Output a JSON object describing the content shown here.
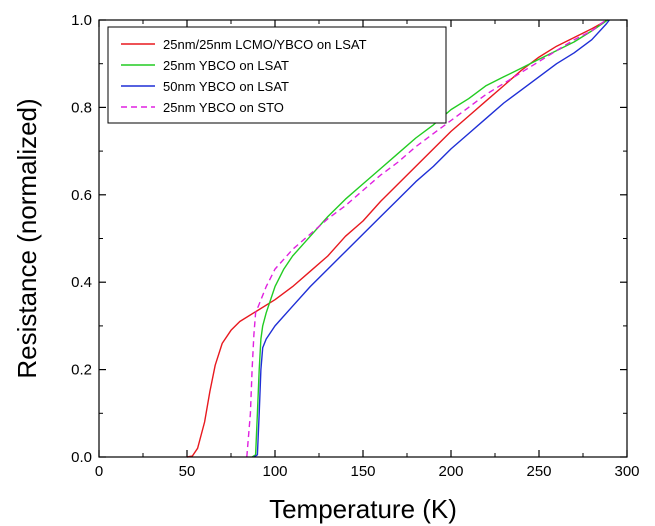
{
  "chart_data": {
    "type": "line",
    "xlabel": "Temperature (K)",
    "ylabel": "Resistance (normalized)",
    "xlim": [
      0,
      300
    ],
    "ylim": [
      0,
      1.0
    ],
    "x_ticks": [
      "0",
      "50",
      "100",
      "150",
      "200",
      "250",
      "300"
    ],
    "y_ticks": [
      "0.0",
      "0.2",
      "0.4",
      "0.6",
      "0.8",
      "1.0"
    ],
    "grid": false,
    "legend_position": "top-left",
    "series": [
      {
        "name": "25nm/25nm LCMO/YBCO on LSAT",
        "color": "#e8191f",
        "dash": "solid",
        "points": [
          [
            50,
            0
          ],
          [
            53,
            0.002
          ],
          [
            56,
            0.02
          ],
          [
            60,
            0.08
          ],
          [
            63,
            0.15
          ],
          [
            66,
            0.21
          ],
          [
            70,
            0.26
          ],
          [
            75,
            0.29
          ],
          [
            80,
            0.31
          ],
          [
            90,
            0.335
          ],
          [
            100,
            0.36
          ],
          [
            110,
            0.39
          ],
          [
            120,
            0.425
          ],
          [
            130,
            0.46
          ],
          [
            140,
            0.505
          ],
          [
            150,
            0.54
          ],
          [
            160,
            0.585
          ],
          [
            170,
            0.625
          ],
          [
            180,
            0.665
          ],
          [
            190,
            0.705
          ],
          [
            200,
            0.745
          ],
          [
            210,
            0.78
          ],
          [
            220,
            0.815
          ],
          [
            230,
            0.85
          ],
          [
            240,
            0.885
          ],
          [
            250,
            0.915
          ],
          [
            260,
            0.94
          ],
          [
            270,
            0.96
          ],
          [
            280,
            0.98
          ],
          [
            289,
            1.0
          ]
        ]
      },
      {
        "name": "25nm YBCO on LSAT",
        "color": "#22cc22",
        "dash": "solid",
        "points": [
          [
            87,
            0
          ],
          [
            89,
            0.005
          ],
          [
            90,
            0.1
          ],
          [
            91,
            0.2
          ],
          [
            92,
            0.27
          ],
          [
            93,
            0.3
          ],
          [
            95,
            0.33
          ],
          [
            100,
            0.39
          ],
          [
            105,
            0.43
          ],
          [
            110,
            0.46
          ],
          [
            120,
            0.505
          ],
          [
            130,
            0.55
          ],
          [
            140,
            0.59
          ],
          [
            150,
            0.625
          ],
          [
            160,
            0.66
          ],
          [
            170,
            0.695
          ],
          [
            180,
            0.73
          ],
          [
            190,
            0.76
          ],
          [
            200,
            0.795
          ],
          [
            210,
            0.82
          ],
          [
            220,
            0.85
          ],
          [
            230,
            0.87
          ],
          [
            240,
            0.89
          ],
          [
            250,
            0.91
          ],
          [
            260,
            0.93
          ],
          [
            270,
            0.95
          ],
          [
            280,
            0.975
          ],
          [
            289,
            1.0
          ]
        ]
      },
      {
        "name": "50nm YBCO on LSAT",
        "color": "#1f2fd6",
        "dash": "solid",
        "points": [
          [
            88,
            0
          ],
          [
            90,
            0.005
          ],
          [
            91,
            0.1
          ],
          [
            92,
            0.2
          ],
          [
            93,
            0.25
          ],
          [
            95,
            0.27
          ],
          [
            100,
            0.3
          ],
          [
            110,
            0.345
          ],
          [
            120,
            0.39
          ],
          [
            130,
            0.43
          ],
          [
            140,
            0.47
          ],
          [
            150,
            0.51
          ],
          [
            160,
            0.55
          ],
          [
            170,
            0.59
          ],
          [
            180,
            0.63
          ],
          [
            190,
            0.665
          ],
          [
            200,
            0.705
          ],
          [
            210,
            0.74
          ],
          [
            220,
            0.775
          ],
          [
            230,
            0.81
          ],
          [
            240,
            0.84
          ],
          [
            250,
            0.87
          ],
          [
            260,
            0.9
          ],
          [
            270,
            0.925
          ],
          [
            280,
            0.955
          ],
          [
            288,
            0.99
          ],
          [
            290,
            1.0
          ]
        ]
      },
      {
        "name": "25nm YBCO on STO",
        "color": "#e020e0",
        "dash": "dashed",
        "points": [
          [
            84,
            0
          ],
          [
            86,
            0.1
          ],
          [
            87,
            0.2
          ],
          [
            88,
            0.28
          ],
          [
            89,
            0.33
          ],
          [
            91,
            0.35
          ],
          [
            95,
            0.39
          ],
          [
            100,
            0.43
          ],
          [
            110,
            0.475
          ],
          [
            120,
            0.51
          ],
          [
            130,
            0.545
          ],
          [
            140,
            0.575
          ],
          [
            150,
            0.61
          ],
          [
            160,
            0.645
          ],
          [
            170,
            0.675
          ],
          [
            180,
            0.71
          ],
          [
            190,
            0.74
          ],
          [
            200,
            0.77
          ],
          [
            210,
            0.8
          ],
          [
            220,
            0.83
          ],
          [
            230,
            0.855
          ],
          [
            240,
            0.88
          ],
          [
            250,
            0.905
          ],
          [
            260,
            0.93
          ],
          [
            270,
            0.955
          ],
          [
            280,
            0.975
          ],
          [
            288,
            1.0
          ]
        ]
      }
    ]
  }
}
